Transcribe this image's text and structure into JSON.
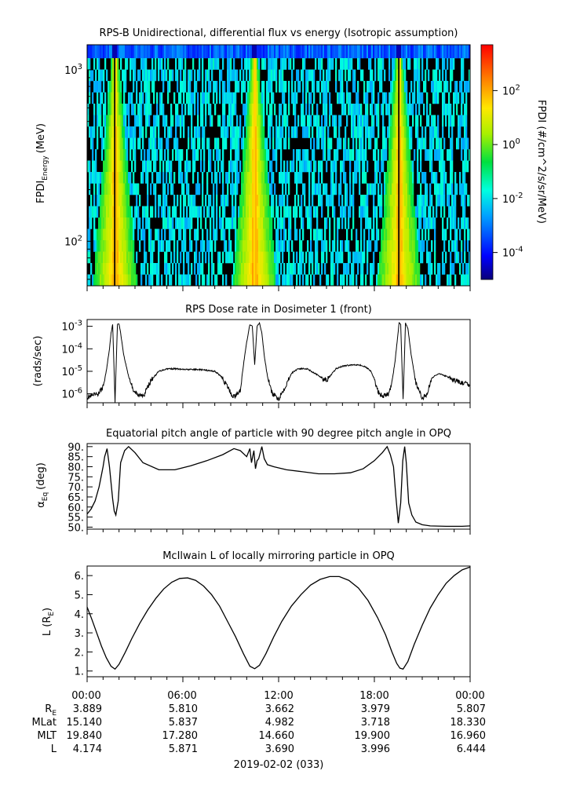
{
  "date_label": "2019-02-02 (033)",
  "ephemeris": {
    "row_labels": [
      "R_E",
      "MLat",
      "MLT",
      "L"
    ],
    "times": [
      "00:00",
      "06:00",
      "12:00",
      "18:00",
      "00:00"
    ],
    "rows": [
      [
        "3.889",
        "5.810",
        "3.662",
        "3.979",
        "5.807"
      ],
      [
        "15.140",
        "5.837",
        "4.982",
        "3.718",
        "18.330"
      ],
      [
        "19.840",
        "17.280",
        "14.660",
        "19.900",
        "16.960"
      ],
      [
        "4.174",
        "5.871",
        "3.690",
        "3.996",
        "6.444"
      ]
    ]
  },
  "chart_data": [
    {
      "type": "heatmap",
      "title": "RPS-B  Unidirectional, differential flux vs energy (Isotropic assumption)",
      "ylabel": "FPDI_Energy (MeV)",
      "ylabel_main": "FPDI",
      "ylabel_sub": "Energy",
      "ylabel_tail": "(MeV)",
      "y_scale": "log",
      "ylim": [
        55,
        1400
      ],
      "y_ticks": [
        {
          "base": "10",
          "exp": "3",
          "value": 1000
        },
        {
          "base": "10",
          "exp": "2",
          "value": 100
        }
      ],
      "xlim_hours": [
        0,
        24
      ],
      "colorbar": {
        "label": "FPDI (#/cm^2/s/sr/MeV)",
        "scale": "log",
        "range": [
          1e-05,
          5000
        ],
        "ticks": [
          {
            "base": "10",
            "exp": "2",
            "value": 100
          },
          {
            "base": "10",
            "exp": "0",
            "value": 1
          },
          {
            "base": "10",
            "exp": "-2",
            "value": 0.01
          },
          {
            "base": "10",
            "exp": "-4",
            "value": 0.0001
          }
        ]
      },
      "peak_times_hours": [
        1.75,
        10.5,
        19.55
      ]
    },
    {
      "type": "line",
      "title": "RPS  Dose rate in Dosimeter 1 (front)",
      "ylabel": "(rads/sec)",
      "y_scale": "log",
      "ylim": [
        4e-07,
        0.002
      ],
      "y_ticks": [
        {
          "base": "10",
          "exp": "-3",
          "value": 0.001
        },
        {
          "base": "10",
          "exp": "-4",
          "value": 0.0001
        },
        {
          "base": "10",
          "exp": "-5",
          "value": 1e-05
        },
        {
          "base": "10",
          "exp": "-6",
          "value": 1e-06
        }
      ],
      "series": [
        {
          "x": [
            0.0,
            0.3,
            0.7,
            1.0,
            1.2,
            1.4,
            1.5,
            1.6,
            1.75,
            1.9,
            2.0,
            2.1,
            2.3,
            2.6,
            2.9,
            3.2,
            3.6,
            4.0,
            4.5,
            5.0,
            5.5,
            6.0,
            6.5,
            7.0,
            7.5,
            8.0,
            8.4,
            8.8,
            9.1,
            9.3,
            9.6,
            9.8,
            10.0,
            10.2,
            10.35,
            10.5,
            10.65,
            10.8,
            10.95,
            11.1,
            11.3,
            11.6,
            12.0,
            12.4,
            12.8,
            13.2,
            13.8,
            14.4,
            15.0,
            15.3,
            15.6,
            16.0,
            16.5,
            17.0,
            17.5,
            17.8,
            18.0,
            18.3,
            18.6,
            18.9,
            19.1,
            19.3,
            19.45,
            19.55,
            19.65,
            19.8,
            19.95,
            20.1,
            20.3,
            20.6,
            21.0,
            21.3,
            21.6,
            22.0,
            22.5,
            23.0,
            23.5,
            24.0
          ],
          "y": [
            7e-07,
            8e-07,
            1e-06,
            2e-06,
            1e-05,
            0.0001,
            0.0005,
            0.0012,
            5e-07,
            0.0012,
            0.0013,
            0.0005,
            5e-05,
            6e-06,
            1.5e-06,
            8e-07,
            1e-06,
            4e-06,
            1e-05,
            1.3e-05,
            1.3e-05,
            1.2e-05,
            1.2e-05,
            1.2e-05,
            1.1e-05,
            1e-05,
            6e-06,
            2e-06,
            8e-07,
            8e-07,
            1.5e-06,
            2e-05,
            0.0002,
            0.0012,
            0.001,
            2e-05,
            0.001,
            0.0014,
            0.0005,
            5e-05,
            6e-06,
            1e-06,
            6e-07,
            2e-06,
            8e-06,
            1.3e-05,
            1.3e-05,
            7e-06,
            4e-06,
            7e-06,
            1.3e-05,
            1.7e-05,
            1.9e-05,
            2e-05,
            1.5e-05,
            1e-05,
            4e-06,
            1e-06,
            8e-07,
            1e-06,
            3e-06,
            3e-05,
            0.0003,
            0.0014,
            0.0012,
            5e-07,
            0.0014,
            0.0008,
            6e-05,
            3e-06,
            6e-07,
            1e-06,
            5e-06,
            8e-06,
            6e-06,
            4e-06,
            3e-06,
            2.5e-06
          ]
        }
      ]
    },
    {
      "type": "line",
      "title": "Equatorial pitch angle of particle with 90 degree pitch angle in OPQ",
      "ylabel": "α_Eq (deg)",
      "ylabel_main": "α",
      "ylabel_sub": "Eq",
      "ylabel_tail": "(deg)",
      "ylim": [
        49,
        91.5
      ],
      "y_ticks": [
        90,
        85,
        80,
        75,
        70,
        65,
        60,
        55,
        50
      ],
      "y_tick_labels": [
        "90.",
        "85.",
        "80.",
        "75.",
        "70.",
        "65.",
        "60.",
        "55.",
        "50."
      ],
      "series": [
        {
          "x": [
            0.0,
            0.25,
            0.5,
            0.75,
            1.0,
            1.1,
            1.25,
            1.4,
            1.6,
            1.7,
            1.8,
            1.95,
            2.1,
            2.35,
            2.6,
            3.0,
            3.5,
            4.5,
            5.5,
            6.5,
            7.5,
            8.5,
            9.2,
            9.6,
            10.0,
            10.2,
            10.3,
            10.45,
            10.55,
            10.65,
            10.75,
            10.85,
            10.95,
            11.1,
            11.3,
            11.7,
            12.5,
            13.5,
            14.5,
            15.5,
            16.5,
            17.3,
            18.0,
            18.5,
            18.8,
            19.0,
            19.2,
            19.35,
            19.5,
            19.65,
            19.78,
            19.9,
            20.0,
            20.15,
            20.35,
            20.6,
            21.0,
            21.5,
            22.5,
            23.5,
            24.0
          ],
          "y": [
            56.5,
            59,
            63,
            70,
            80,
            85,
            89,
            80,
            64,
            58,
            56,
            63,
            82,
            88,
            90,
            87,
            82,
            78.5,
            78.5,
            80.5,
            83,
            86,
            89,
            88,
            85,
            89,
            82,
            88,
            79,
            83,
            84,
            87,
            90,
            84,
            81,
            80,
            78.5,
            77.5,
            76.5,
            76.5,
            77,
            79,
            83,
            87,
            90,
            86,
            80,
            65,
            52,
            62,
            83,
            90,
            82,
            62,
            56,
            52.5,
            51.2,
            50.6,
            50.4,
            50.4,
            50.6
          ]
        }
      ]
    },
    {
      "type": "line",
      "title": "McIlwain L of locally mirroring particle in OPQ",
      "ylabel": "L (R_E)",
      "ylabel_main": "L (R",
      "ylabel_sub": "E",
      "ylabel_tail": ")",
      "ylim": [
        0.7,
        6.5
      ],
      "y_ticks": [
        6,
        5,
        4,
        3,
        2,
        1
      ],
      "y_tick_labels": [
        "6.",
        "5.",
        "4.",
        "3.",
        "2.",
        "1."
      ],
      "series": [
        {
          "x": [
            0.0,
            0.3,
            0.6,
            0.9,
            1.2,
            1.5,
            1.75,
            2.0,
            2.4,
            2.8,
            3.3,
            3.8,
            4.3,
            4.8,
            5.3,
            5.8,
            6.3,
            6.8,
            7.3,
            7.8,
            8.3,
            8.8,
            9.3,
            9.8,
            10.2,
            10.5,
            10.8,
            11.2,
            11.7,
            12.2,
            12.8,
            13.4,
            14.0,
            14.6,
            15.2,
            15.8,
            16.4,
            17.0,
            17.6,
            18.2,
            18.7,
            19.1,
            19.4,
            19.6,
            19.8,
            20.1,
            20.5,
            21.0,
            21.5,
            22.0,
            22.5,
            23.0,
            23.5,
            24.0
          ],
          "y": [
            4.35,
            3.7,
            3.0,
            2.3,
            1.7,
            1.25,
            1.1,
            1.35,
            2.0,
            2.7,
            3.5,
            4.2,
            4.8,
            5.3,
            5.65,
            5.85,
            5.88,
            5.75,
            5.45,
            5.0,
            4.4,
            3.6,
            2.8,
            1.9,
            1.25,
            1.12,
            1.3,
            1.9,
            2.8,
            3.6,
            4.4,
            5.0,
            5.5,
            5.8,
            5.95,
            5.95,
            5.75,
            5.35,
            4.7,
            3.8,
            2.9,
            2.0,
            1.4,
            1.15,
            1.1,
            1.5,
            2.4,
            3.4,
            4.3,
            5.0,
            5.6,
            6.0,
            6.3,
            6.45
          ]
        }
      ]
    }
  ]
}
